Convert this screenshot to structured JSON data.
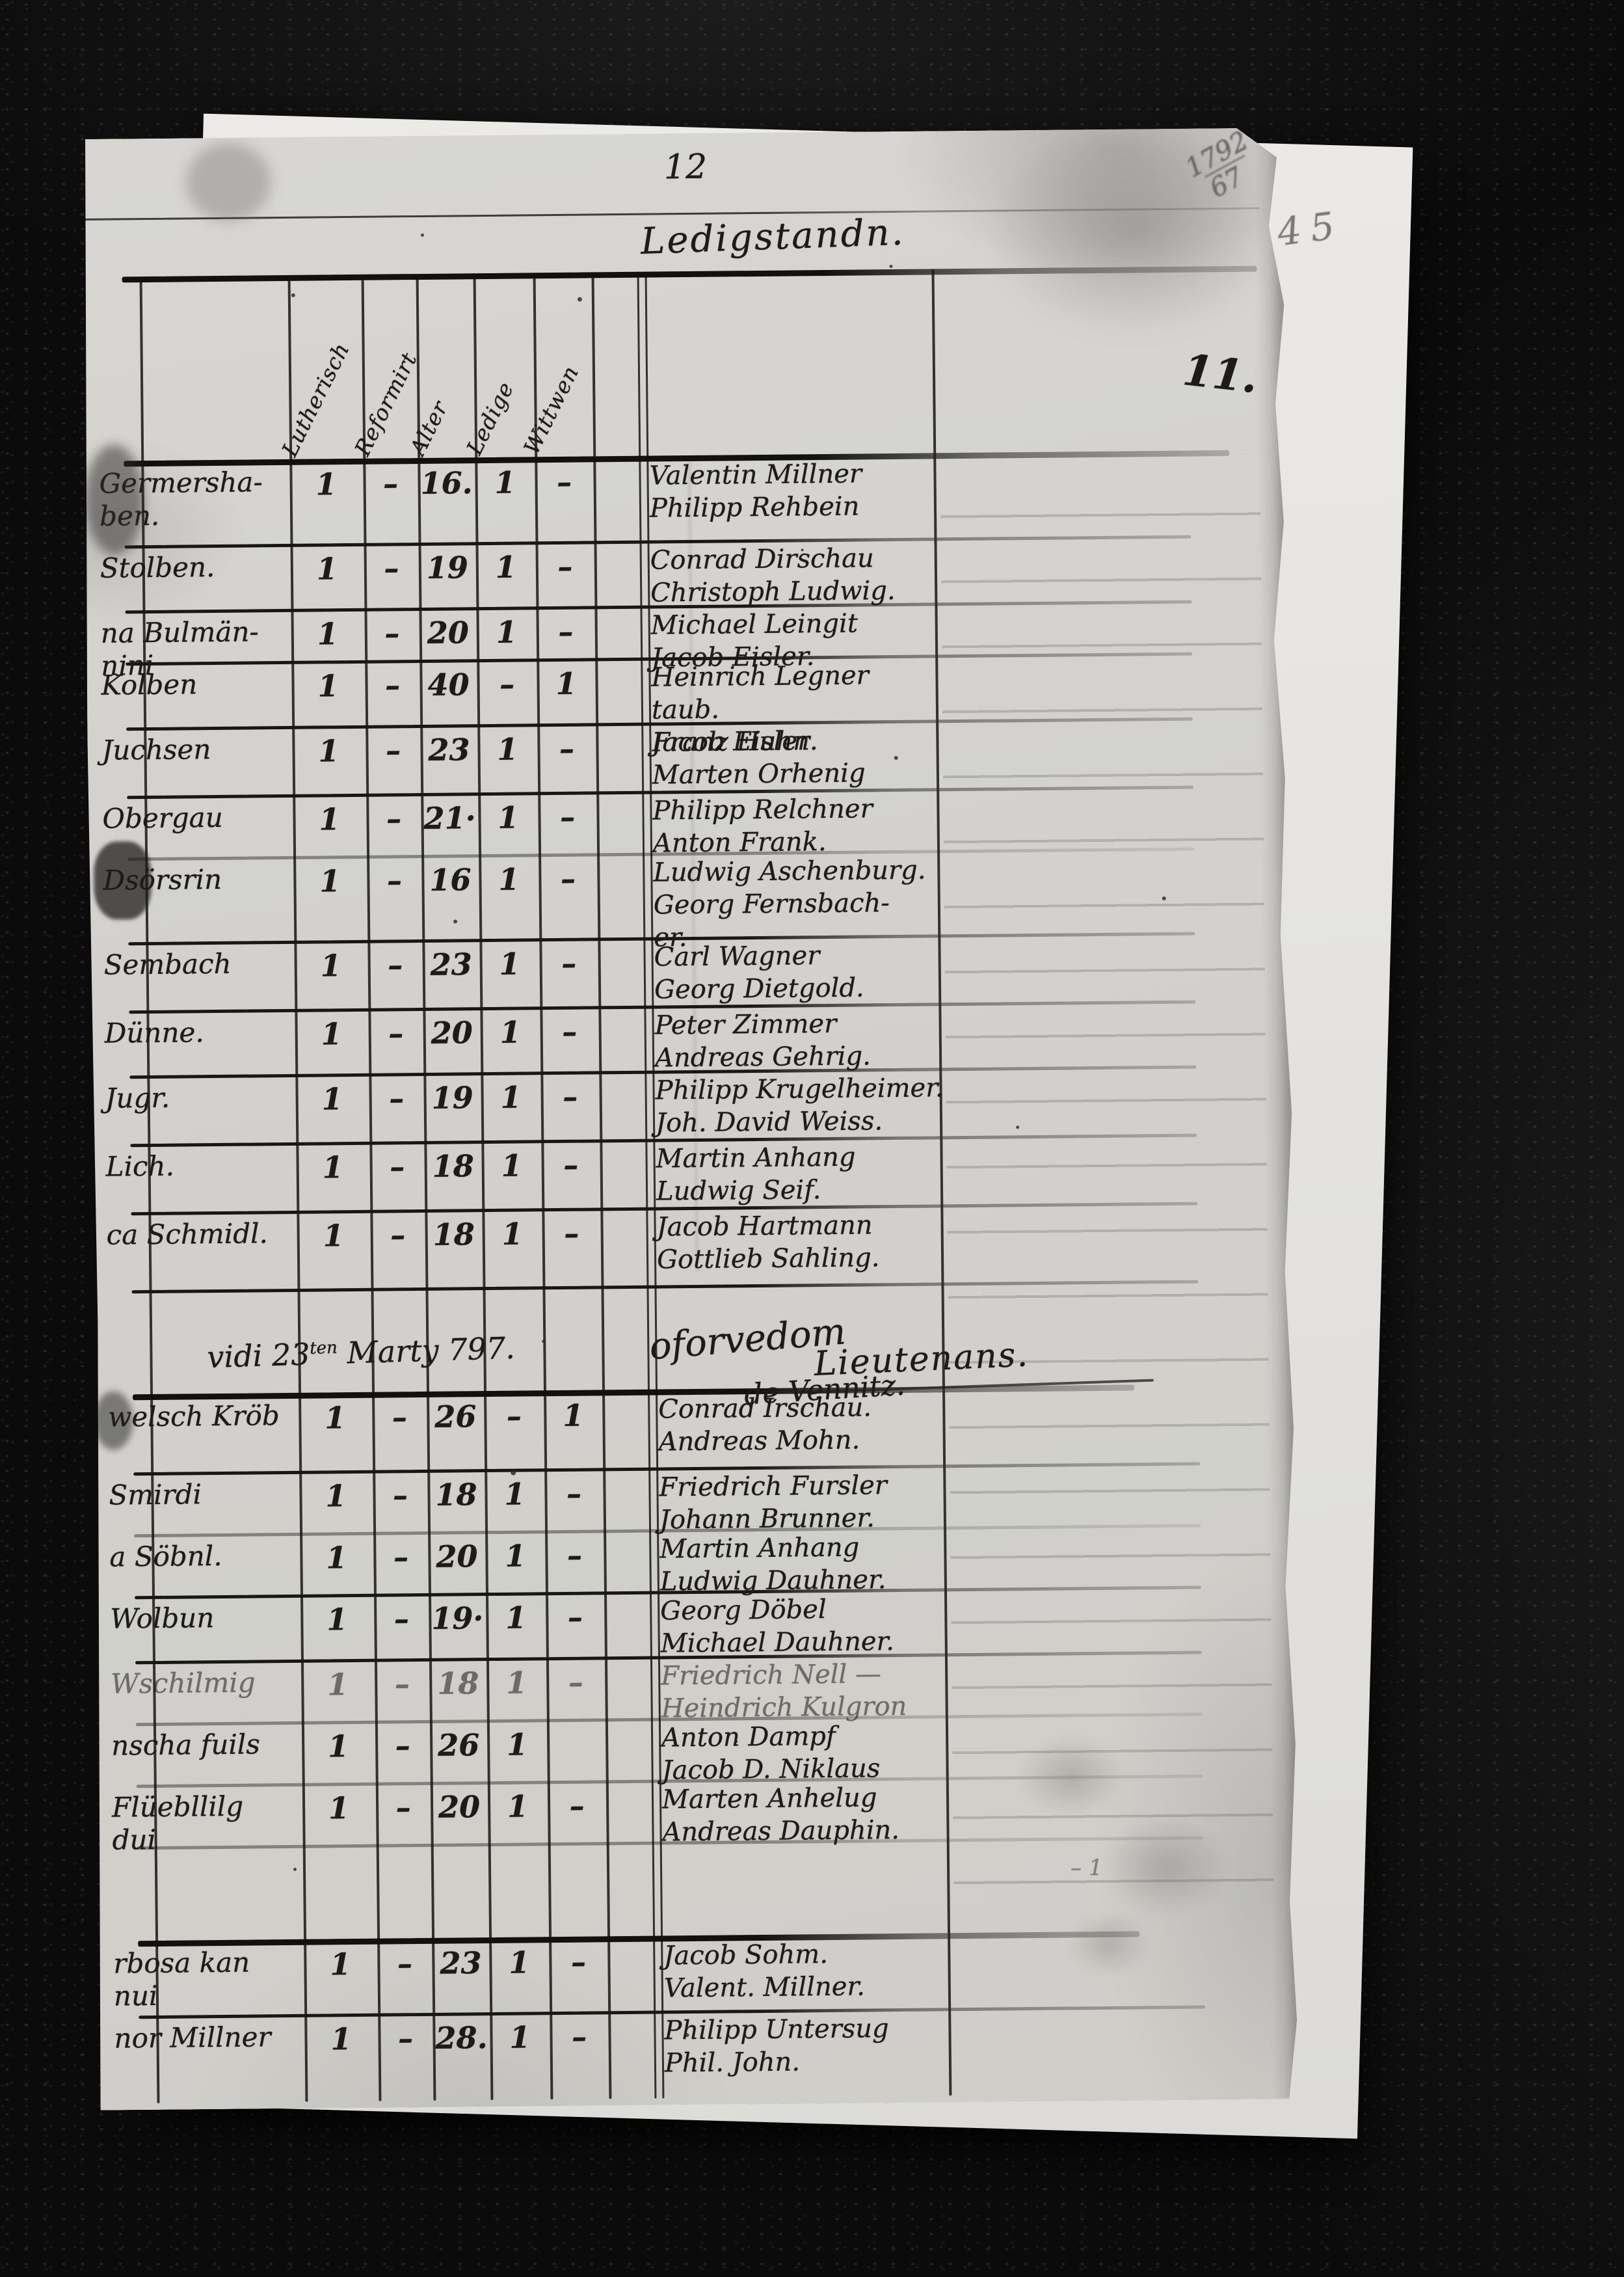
{
  "annotations": {
    "page_number_top": "12",
    "folio_number": "11.",
    "pencil_number": "45",
    "corner_mark_line1": "1792",
    "corner_mark_line2": "67"
  },
  "title": "Ledigstandn.",
  "note": {
    "pre": "vidi 23",
    "sup": "ten",
    "post": " Marty 797.",
    "word": "oforvedom",
    "signature": "Lieutenans.",
    "signature2": "de Vennitz."
  },
  "margin_marks": {
    "small_mark": "– 1"
  },
  "table": {
    "column_headers": [
      "Lutherisch",
      "Reformirt",
      "Alter",
      "Ledige",
      "Wittwen"
    ],
    "rows": [
      {
        "place": [
          "Germersha-",
          "ben."
        ],
        "lutherisch": "1",
        "reformirt": "–",
        "alter": "16.",
        "ledig": "1",
        "wittwen": "–",
        "names": [
          "Valentin Millner",
          "Philipp Rehbein"
        ]
      },
      {
        "place": [
          "Stolben."
        ],
        "lutherisch": "1",
        "reformirt": "–",
        "alter": "19",
        "ledig": "1",
        "wittwen": "–",
        "names": [
          "Conrad Dirschau",
          "Christoph Ludwig."
        ]
      },
      {
        "place": [
          "na Bulmän-",
          "nini"
        ],
        "lutherisch": "1",
        "reformirt": "–",
        "alter": "20",
        "ledig": "1",
        "wittwen": "–",
        "names": [
          "Michael Leingit",
          "Jacob Eisler."
        ]
      },
      {
        "place": [
          "Kolben"
        ],
        "lutherisch": "1",
        "reformirt": "–",
        "alter": "40",
        "ledig": "–",
        "wittwen": "1",
        "names": [
          "Heinrich Legner",
          "taub.",
          "Franz Huhn."
        ]
      },
      {
        "place": [
          "Juchsen"
        ],
        "lutherisch": "1",
        "reformirt": "–",
        "alter": "23",
        "ledig": "1",
        "wittwen": "–",
        "names": [
          "Jacob Eisler",
          "Marten Orhenig"
        ]
      },
      {
        "place": [
          "Obergau"
        ],
        "lutherisch": "1",
        "reformirt": "–",
        "alter": "21·",
        "ledig": "1",
        "wittwen": "–",
        "names": [
          "Philipp Relchner",
          "Anton Frank."
        ]
      },
      {
        "place": [
          "Dsörsrin"
        ],
        "lutherisch": "1",
        "reformirt": "–",
        "alter": "16",
        "ledig": "1",
        "wittwen": "–",
        "names": [
          "Ludwig Aschenburg.",
          "Georg Fernsbach-",
          "er."
        ]
      },
      {
        "place": [
          "Sembach"
        ],
        "lutherisch": "1",
        "reformirt": "–",
        "alter": "23",
        "ledig": "1",
        "wittwen": "–",
        "names": [
          "Carl Wagner",
          "Georg Dietgold."
        ]
      },
      {
        "place": [
          "Dünne."
        ],
        "lutherisch": "1",
        "reformirt": "–",
        "alter": "20",
        "ledig": "1",
        "wittwen": "–",
        "names": [
          "Peter Zimmer",
          "Andreas Gehrig."
        ]
      },
      {
        "place": [
          "Jugr."
        ],
        "lutherisch": "1",
        "reformirt": "–",
        "alter": "19",
        "ledig": "1",
        "wittwen": "–",
        "names": [
          "Philipp Krugelheimer.",
          "Joh. David Weiss."
        ]
      },
      {
        "place": [
          "Lich."
        ],
        "lutherisch": "1",
        "reformirt": "–",
        "alter": "18",
        "ledig": "1",
        "wittwen": "–",
        "names": [
          "Martin Anhang",
          "Ludwig Seif."
        ]
      },
      {
        "place": [
          "ca Schmidl."
        ],
        "lutherisch": "1",
        "reformirt": "–",
        "alter": "18",
        "ledig": "1",
        "wittwen": "–",
        "names": [
          "Jacob Hartmann",
          "Gottlieb Sahling."
        ]
      },
      {
        "place": [
          "welsch Kröb"
        ],
        "lutherisch": "1",
        "reformirt": "–",
        "alter": "26",
        "ledig": "–",
        "wittwen": "1",
        "names": [
          "Conrad Irschau.",
          "Andreas Mohn."
        ]
      },
      {
        "place": [
          "Smirdi"
        ],
        "lutherisch": "1",
        "reformirt": "–",
        "alter": "18",
        "ledig": "1",
        "wittwen": "–",
        "names": [
          "Friedrich Fursler",
          "Johann Brunner."
        ]
      },
      {
        "place": [
          "a Söbnl."
        ],
        "lutherisch": "1",
        "reformirt": "–",
        "alter": "20",
        "ledig": "1",
        "wittwen": "–",
        "names": [
          "Martin Anhang",
          "Ludwig Dauhner."
        ]
      },
      {
        "place": [
          "Wolbun"
        ],
        "lutherisch": "1",
        "reformirt": "–",
        "alter": "19·",
        "ledig": "1",
        "wittwen": "–",
        "names": [
          "Georg Döbel",
          "Michael Dauhner."
        ]
      },
      {
        "place": [
          "Wschilmig"
        ],
        "lutherisch": "1",
        "reformirt": "–",
        "alter": "18",
        "ledig": "1",
        "wittwen": "–",
        "faint": true,
        "names": [
          "Friedrich Nell —",
          "Heindrich Kulgron"
        ]
      },
      {
        "place": [
          "nscha fuils"
        ],
        "lutherisch": "1",
        "reformirt": "–",
        "alter": "26",
        "ledig": "1",
        "wittwen": "",
        "names": [
          "Anton Dampf",
          "Jacob D. Niklaus"
        ]
      },
      {
        "place": [
          "Flüebllilg",
          "dui"
        ],
        "lutherisch": "1",
        "reformirt": "–",
        "alter": "20",
        "ledig": "1",
        "wittwen": "–",
        "names": [
          "Marten Anhelug",
          "Andreas Dauphin."
        ]
      },
      {
        "place": [
          "rbosa kan",
          "nui"
        ],
        "lutherisch": "1",
        "reformirt": "–",
        "alter": "23",
        "ledig": "1",
        "wittwen": "–",
        "names": [
          "Jacob Sohm.",
          "Valent. Millner."
        ]
      },
      {
        "place": [
          "nor Millner"
        ],
        "lutherisch": "1",
        "reformirt": "–",
        "alter": "28.",
        "ledig": "1",
        "wittwen": "–",
        "names": [
          "Philipp Untersug",
          "Phil. John."
        ]
      }
    ]
  }
}
